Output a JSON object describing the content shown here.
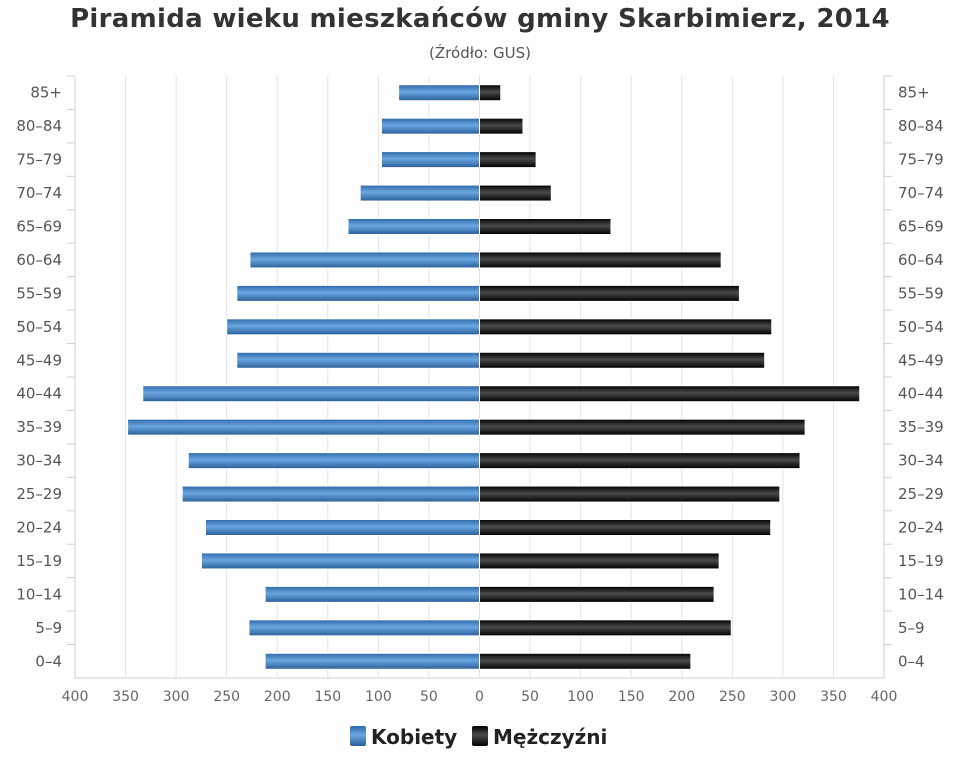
{
  "chart_data": {
    "type": "bar",
    "orientation": "horizontal",
    "title": "Piramida wieku mieszkańców gminy Skarbimierz, 2014",
    "subtitle": "(Źródło: GUS)",
    "categories": [
      "85+",
      "80–84",
      "75–79",
      "70–74",
      "65–69",
      "60–64",
      "55–59",
      "50–54",
      "45–49",
      "40–44",
      "35–39",
      "30–34",
      "25–29",
      "20–24",
      "15–19",
      "10–14",
      "5–9",
      "0–4"
    ],
    "series": [
      {
        "name": "Kobiety",
        "color": "#4d8ac9",
        "values": [
          80,
          97,
          97,
          118,
          130,
          227,
          240,
          250,
          240,
          333,
          348,
          288,
          294,
          271,
          275,
          212,
          228,
          212
        ]
      },
      {
        "name": "Mężczyźni",
        "color": "#1a1a1a",
        "values": [
          21,
          43,
          56,
          71,
          130,
          239,
          257,
          289,
          282,
          376,
          322,
          317,
          297,
          288,
          237,
          232,
          249,
          209
        ]
      }
    ],
    "x_ticks": [
      "400",
      "350",
      "300",
      "250",
      "200",
      "150",
      "100",
      "50",
      "0",
      "50",
      "100",
      "150",
      "200",
      "250",
      "300",
      "350",
      "400"
    ],
    "xlim": [
      -400,
      400
    ],
    "grid": true,
    "legend_position": "bottom-center"
  }
}
